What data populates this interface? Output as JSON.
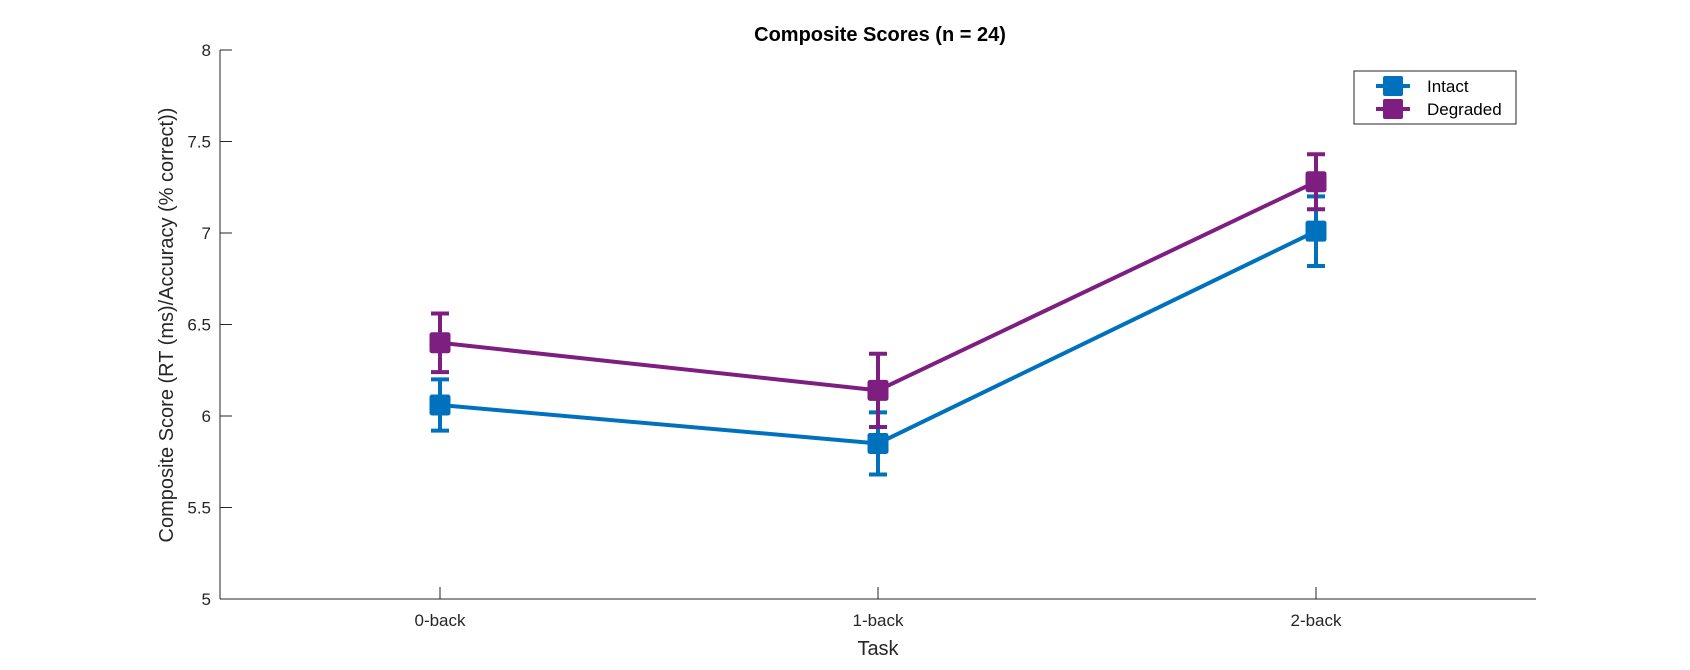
{
  "chart_data": {
    "type": "line",
    "title": "Composite Scores (n = 24)",
    "xlabel": "Task",
    "ylabel": "Composite Score (RT (ms)/Accuracy (% correct))",
    "categories": [
      "0-back",
      "1-back",
      "2-back"
    ],
    "ylim": [
      5,
      8
    ],
    "yticks": [
      5,
      5.5,
      6,
      6.5,
      7,
      7.5,
      8
    ],
    "ytick_labels": [
      "5",
      "5.5",
      "6",
      "6.5",
      "7",
      "7.5",
      "8"
    ],
    "grid": false,
    "legend_position": "top-right",
    "series": [
      {
        "name": "Intact",
        "color": "#0072BD",
        "marker": "square",
        "values": [
          6.06,
          5.85,
          7.01
        ],
        "error": [
          0.14,
          0.17,
          0.19
        ]
      },
      {
        "name": "Degraded",
        "color": "#7E1E80",
        "marker": "square",
        "values": [
          6.4,
          6.14,
          7.28
        ],
        "error": [
          0.16,
          0.2,
          0.15
        ]
      }
    ]
  }
}
